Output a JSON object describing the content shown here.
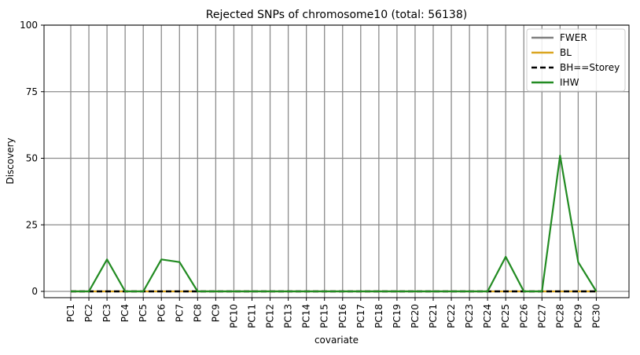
{
  "chart_data": {
    "type": "line",
    "title": "Rejected SNPs of chromosome10 (total: 56138)",
    "xlabel": "covariate",
    "ylabel": "Discovery",
    "ylim": [
      0,
      100
    ],
    "yticks": [
      "0",
      "25",
      "50",
      "75",
      "100"
    ],
    "grid": true,
    "legend_position": "top-right",
    "categories": [
      "PC1",
      "PC2",
      "PC3",
      "PC4",
      "PC5",
      "PC6",
      "PC7",
      "PC8",
      "PC9",
      "PC10",
      "PC11",
      "PC12",
      "PC13",
      "PC14",
      "PC15",
      "PC16",
      "PC17",
      "PC18",
      "PC19",
      "PC20",
      "PC21",
      "PC22",
      "PC23",
      "PC24",
      "PC25",
      "PC26",
      "PC27",
      "PC28",
      "PC29",
      "PC30"
    ],
    "series": [
      {
        "name": "FWER",
        "color": "#808080",
        "dash": "solid",
        "values": [
          0,
          0,
          0,
          0,
          0,
          0,
          0,
          0,
          0,
          0,
          0,
          0,
          0,
          0,
          0,
          0,
          0,
          0,
          0,
          0,
          0,
          0,
          0,
          0,
          0,
          0,
          0,
          0,
          0,
          0
        ]
      },
      {
        "name": "BL",
        "color": "#daa520",
        "dash": "solid",
        "values": [
          0,
          0,
          0,
          0,
          0,
          0,
          0,
          0,
          0,
          0,
          0,
          0,
          0,
          0,
          0,
          0,
          0,
          0,
          0,
          0,
          0,
          0,
          0,
          0,
          0,
          0,
          0,
          0,
          0,
          0
        ]
      },
      {
        "name": "BH==Storey",
        "color": "#000000",
        "dash": "dashed",
        "values": [
          0,
          0,
          0,
          0,
          0,
          0,
          0,
          0,
          0,
          0,
          0,
          0,
          0,
          0,
          0,
          0,
          0,
          0,
          0,
          0,
          0,
          0,
          0,
          0,
          0,
          0,
          0,
          0,
          0,
          0
        ]
      },
      {
        "name": "IHW",
        "color": "#228b22",
        "dash": "solid",
        "values": [
          0,
          0,
          12,
          0,
          0,
          12,
          11,
          0,
          0,
          0,
          0,
          0,
          0,
          0,
          0,
          0,
          0,
          0,
          0,
          0,
          0,
          0,
          0,
          0,
          13,
          0,
          0,
          51,
          11,
          0
        ]
      }
    ]
  }
}
